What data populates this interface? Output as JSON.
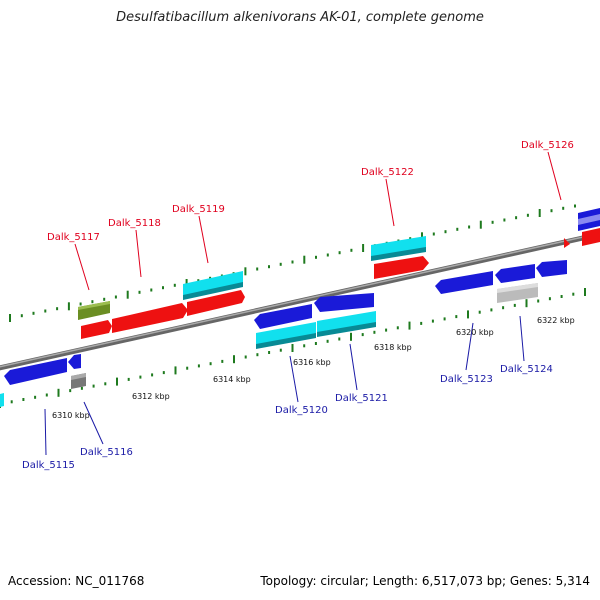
{
  "title": "Desulfatibacillum alkenivorans AK-01, complete genome",
  "footer": {
    "accession": "Accession: NC_011768",
    "info": "Topology: circular; Length: 6,517,073 bp; Genes: 5,314"
  },
  "colors": {
    "backbone": "#888888",
    "tick": "#1e7a1e",
    "red_gene": "#ee1111",
    "blue_gene": "#1a1ad8",
    "cyan_gene": "#11e0ee",
    "green_gene": "#6b8e23",
    "gray_gene": "#777777",
    "light_gray_gene": "#bbbbbb",
    "red_label": "#e0001e",
    "blue_label": "#1a1aa6"
  },
  "scale_labels": [
    {
      "kbp": 6310,
      "text": "6310 kbp"
    },
    {
      "kbp": 6312,
      "text": "6312 kbp"
    },
    {
      "kbp": 6314,
      "text": "6314 kbp"
    },
    {
      "kbp": 6316,
      "text": "6316 kbp"
    },
    {
      "kbp": 6318,
      "text": "6318 kbp"
    },
    {
      "kbp": 6320,
      "text": "6320 kbp"
    },
    {
      "kbp": 6322,
      "text": "6322 kbp"
    }
  ],
  "genes": [
    {
      "label": "Dalk_5115",
      "strand": "reverse",
      "color": "blue"
    },
    {
      "label": "Dalk_5116",
      "strand": "reverse",
      "color": "gray"
    },
    {
      "label": "Dalk_5117",
      "strand": "forward",
      "color": "green"
    },
    {
      "label": "Dalk_5118",
      "strand": "forward",
      "color": "red"
    },
    {
      "label": "Dalk_5119",
      "strand": "forward",
      "color": "cyan"
    },
    {
      "label": "Dalk_5120",
      "strand": "reverse",
      "color": "cyan"
    },
    {
      "label": "Dalk_5121",
      "strand": "reverse",
      "color": "cyan"
    },
    {
      "label": "Dalk_5122",
      "strand": "forward",
      "color": "cyan"
    },
    {
      "label": "Dalk_5123",
      "strand": "reverse",
      "color": "blue"
    },
    {
      "label": "Dalk_5124",
      "strand": "reverse",
      "color": "light_gray"
    },
    {
      "label": "Dalk_5126",
      "strand": "forward",
      "color": "red"
    }
  ]
}
